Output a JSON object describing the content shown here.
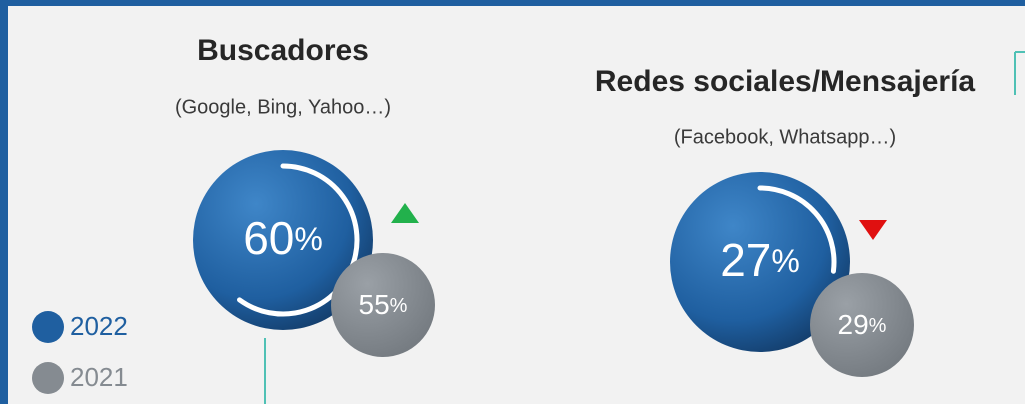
{
  "panels": [
    {
      "title": "Buscadores",
      "subtitle": "(Google, Bing, Yahoo…)",
      "current": {
        "value": 60,
        "unit": "%"
      },
      "previous": {
        "value": 55,
        "unit": "%"
      },
      "trend": "up"
    },
    {
      "title": "Redes sociales/Mensajería",
      "subtitle": "(Facebook, Whatsapp…)",
      "current": {
        "value": 27,
        "unit": "%"
      },
      "previous": {
        "value": 29,
        "unit": "%"
      },
      "trend": "down"
    }
  ],
  "legend": [
    {
      "label": "2022",
      "color": "#1f5fa0"
    },
    {
      "label": "2021",
      "color": "#858b91"
    }
  ]
}
